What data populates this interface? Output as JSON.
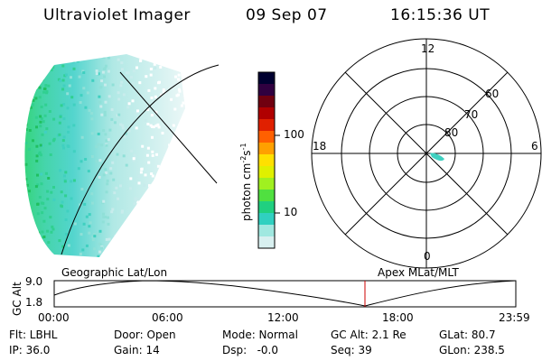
{
  "header": {
    "instrument": "Ultraviolet Imager",
    "date": "09 Sep 07",
    "time": "16:15:36 UT"
  },
  "colorbar": {
    "unit_label": "photon cm",
    "unit_sup1": "-2",
    "unit_s": "s",
    "unit_sup2": "-1",
    "ticks": [
      "100",
      "10"
    ],
    "colors": [
      "#000030",
      "#300040",
      "#700010",
      "#b00000",
      "#e02000",
      "#ff6000",
      "#ffa000",
      "#ffe000",
      "#e0f000",
      "#a0f020",
      "#50e040",
      "#20d080",
      "#30d0c0",
      "#a0e8e0",
      "#d8f0f0"
    ]
  },
  "polar_plot": {
    "mlt_labels": {
      "top": "12",
      "bottom": "0",
      "left": "18",
      "right": "6"
    },
    "lat_labels": [
      "60",
      "70",
      "80"
    ]
  },
  "geo_panel": {
    "title": "Geographic Lat/Lon",
    "apex_title": "Apex MLat/MLT"
  },
  "timeline": {
    "ylabel": "GC Alt",
    "yticks": [
      "9.0",
      "1.8"
    ],
    "xticks": [
      "00:00",
      "06:00",
      "12:00",
      "18:00",
      "23:59"
    ],
    "marker_color": "#cc0000"
  },
  "status": {
    "flt": "Flt: LBHL",
    "door": "Door: Open",
    "mode": "Mode: Normal",
    "gc_alt": "GC Alt: 2.1 Re",
    "glat": "GLat:  80.7",
    "ip": "IP: 36.0",
    "gain": "Gain: 14",
    "dsp": "Dsp:   -0.0",
    "seq": "Seq: 39",
    "glon": "GLon: 238.5"
  }
}
